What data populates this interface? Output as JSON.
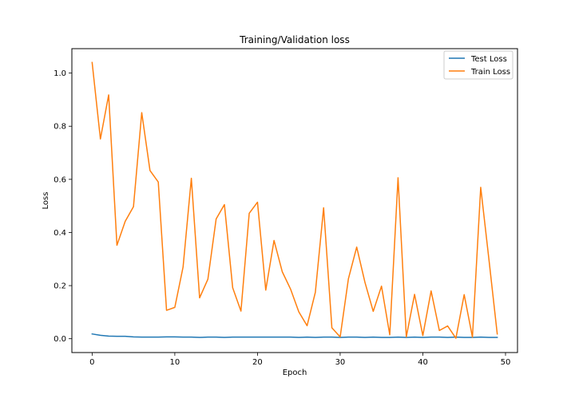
{
  "chart_data": {
    "type": "line",
    "title": "Training/Validation loss",
    "xlabel": "Epoch",
    "ylabel": "Loss",
    "xlim": [
      -2.45,
      51.45
    ],
    "ylim": [
      -0.052,
      1.092
    ],
    "xticks": [
      0,
      10,
      20,
      30,
      40,
      50
    ],
    "yticks": [
      0.0,
      0.2,
      0.4,
      0.6,
      0.8,
      1.0
    ],
    "ytick_labels": [
      "0.0",
      "0.2",
      "0.4",
      "0.6",
      "0.8",
      "1.0"
    ],
    "grid": false,
    "legend_position": "top-right",
    "x": [
      0,
      1,
      2,
      3,
      4,
      5,
      6,
      7,
      8,
      9,
      10,
      11,
      12,
      13,
      14,
      15,
      16,
      17,
      18,
      19,
      20,
      21,
      22,
      23,
      24,
      25,
      26,
      27,
      28,
      29,
      30,
      31,
      32,
      33,
      34,
      35,
      36,
      37,
      38,
      39,
      40,
      41,
      42,
      43,
      44,
      45,
      46,
      47,
      48,
      49
    ],
    "series": [
      {
        "name": "Test Loss",
        "color": "#1f77b4",
        "values": [
          0.018,
          0.013,
          0.01,
          0.009,
          0.009,
          0.007,
          0.006,
          0.006,
          0.006,
          0.007,
          0.007,
          0.006,
          0.006,
          0.005,
          0.006,
          0.006,
          0.005,
          0.006,
          0.006,
          0.006,
          0.006,
          0.006,
          0.006,
          0.006,
          0.006,
          0.005,
          0.006,
          0.005,
          0.006,
          0.006,
          0.005,
          0.006,
          0.006,
          0.005,
          0.006,
          0.005,
          0.005,
          0.006,
          0.005,
          0.006,
          0.005,
          0.006,
          0.006,
          0.005,
          0.006,
          0.005,
          0.005,
          0.006,
          0.005,
          0.005
        ]
      },
      {
        "name": "Train Loss",
        "color": "#ff7f0e",
        "values": [
          1.04,
          0.752,
          0.918,
          0.352,
          0.442,
          0.497,
          0.851,
          0.633,
          0.59,
          0.107,
          0.118,
          0.27,
          0.604,
          0.154,
          0.224,
          0.451,
          0.505,
          0.192,
          0.104,
          0.472,
          0.514,
          0.183,
          0.37,
          0.252,
          0.187,
          0.101,
          0.049,
          0.175,
          0.493,
          0.041,
          0.007,
          0.226,
          0.345,
          0.212,
          0.103,
          0.198,
          0.015,
          0.606,
          0.007,
          0.167,
          0.012,
          0.18,
          0.031,
          0.048,
          0.002,
          0.166,
          0.006,
          0.57,
          0.297,
          0.018
        ]
      }
    ]
  }
}
